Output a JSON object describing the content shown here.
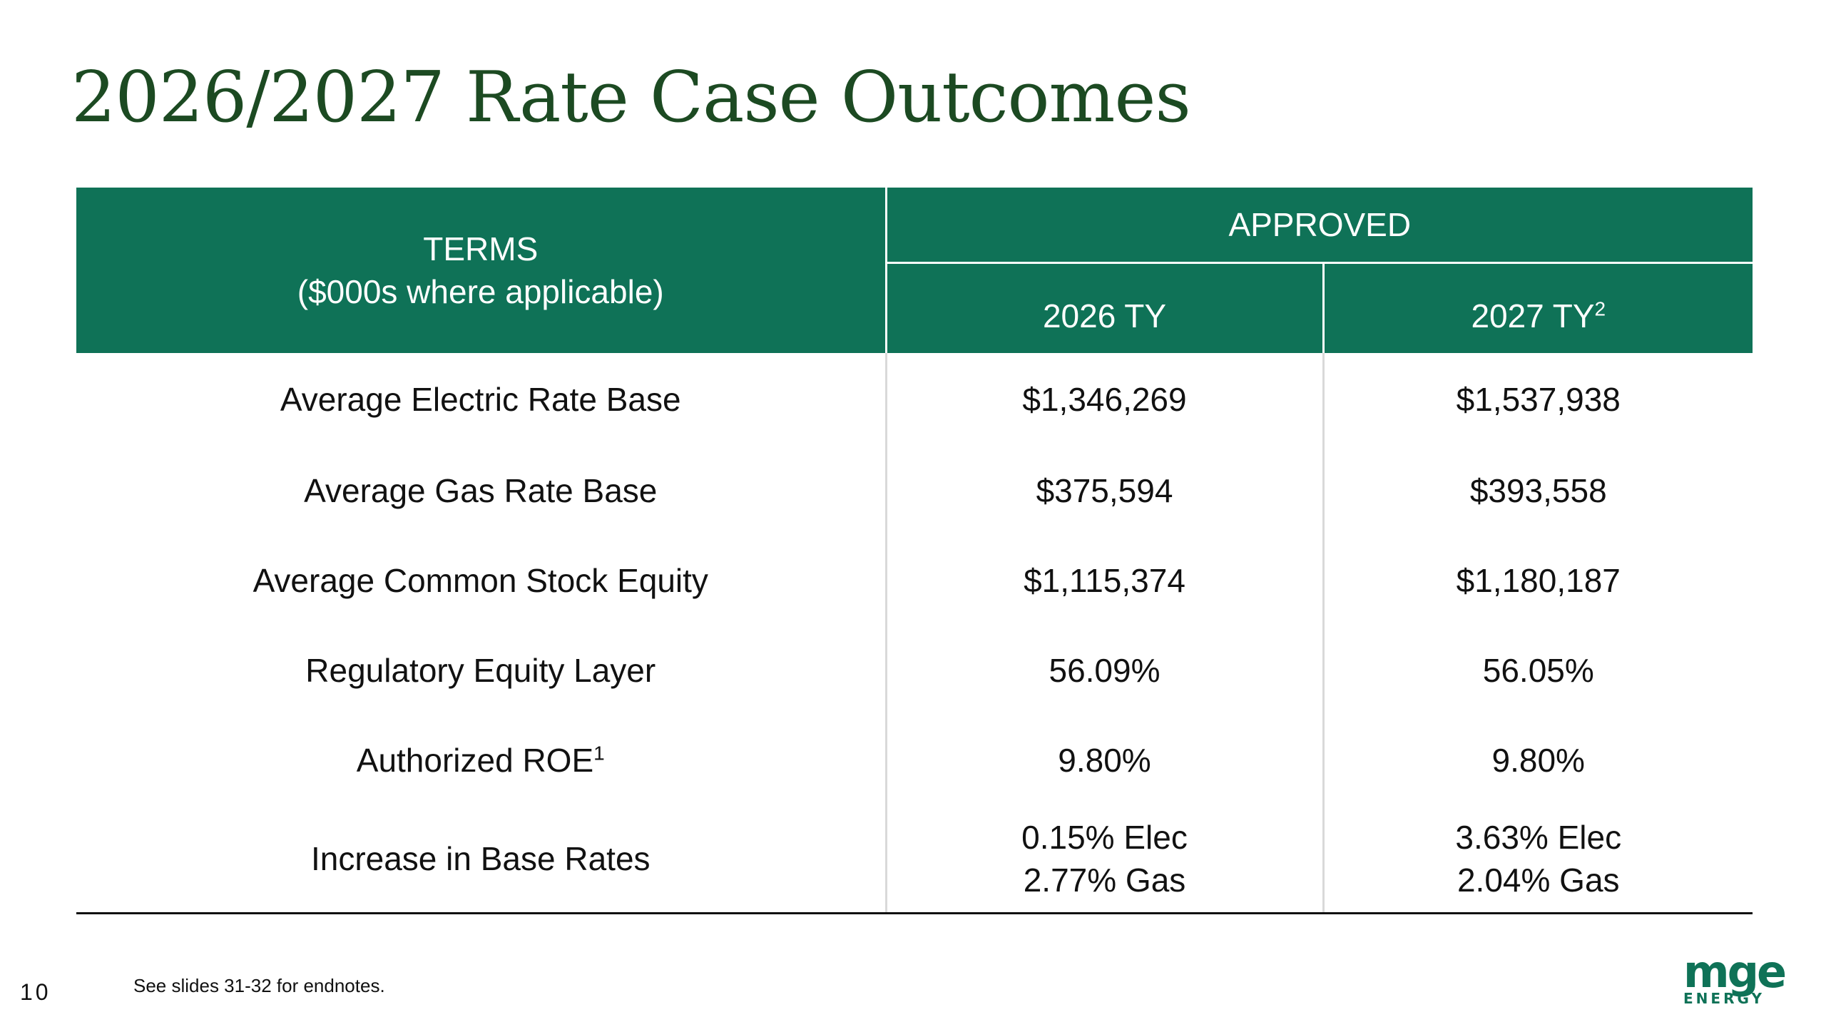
{
  "title": "2026/2027 Rate Case Outcomes",
  "table": {
    "header": {
      "terms_line1": "TERMS",
      "terms_line2": "($000s where applicable)",
      "approved": "APPROVED",
      "col1": "2026 TY",
      "col2": "2027 TY",
      "col2_sup": "2"
    },
    "rows": [
      {
        "term": "Average Electric Rate Base",
        "ty2026": "$1,346,269",
        "ty2027": "$1,537,938"
      },
      {
        "term": "Average Gas Rate Base",
        "ty2026": "$375,594",
        "ty2027": "$393,558"
      },
      {
        "term": "Average Common Stock Equity",
        "ty2026": "$1,115,374",
        "ty2027": "$1,180,187"
      },
      {
        "term": "Regulatory Equity Layer",
        "ty2026": "56.09%",
        "ty2027": "56.05%"
      },
      {
        "term": "Authorized ROE",
        "term_sup": "1",
        "ty2026": "9.80%",
        "ty2027": "9.80%"
      },
      {
        "term": "Increase in Base Rates",
        "ty2026_line1": "0.15% Elec",
        "ty2026_line2": "2.77% Gas",
        "ty2027_line1": "3.63% Elec",
        "ty2027_line2": "2.04% Gas"
      }
    ]
  },
  "page_number": "10",
  "footnote": "See slides 31-32 for endnotes.",
  "logo": {
    "top": "mge",
    "bottom": "ENERGY"
  },
  "colors": {
    "title": "#1c4a22",
    "header_bg": "#0f7257",
    "logo": "#0f7257"
  }
}
